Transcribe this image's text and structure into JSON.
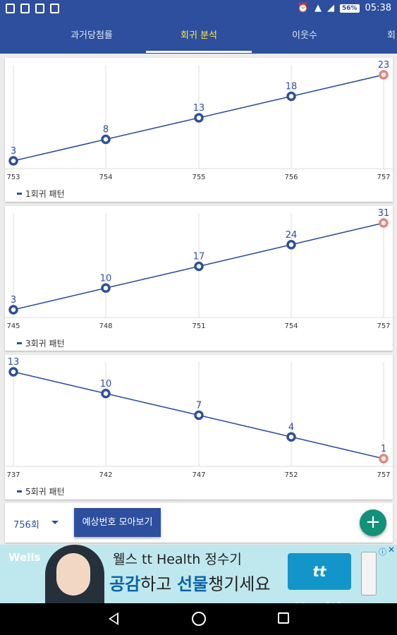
{
  "status_bar": {
    "battery": "56%",
    "time": "05:38",
    "icons": [
      "image-icon",
      "mail-icon",
      "sim-icon",
      "file-icon",
      "alarm-icon",
      "wifi-icon",
      "signal-icon",
      "battery-icon"
    ]
  },
  "tabs": [
    {
      "label": "과거당첨률"
    },
    {
      "label": "회귀 분석"
    },
    {
      "label": "이웃수"
    },
    {
      "label": "회"
    }
  ],
  "active_tab": "회귀 분석",
  "chart_data": [
    {
      "type": "line",
      "x": [
        "753",
        "754",
        "755",
        "756",
        "757"
      ],
      "values": [
        3,
        8,
        13,
        18,
        23
      ],
      "data_labels": [
        "3",
        "8",
        "13",
        "18",
        "23"
      ],
      "legend": "1회귀 패턴"
    },
    {
      "type": "line",
      "x": [
        "745",
        "748",
        "751",
        "754",
        "757"
      ],
      "values": [
        3,
        10,
        17,
        24,
        31
      ],
      "data_labels": [
        "3",
        "10",
        "17",
        "24",
        "31"
      ],
      "legend": "3회귀 패턴"
    },
    {
      "type": "line",
      "x": [
        "737",
        "742",
        "747",
        "752",
        "757"
      ],
      "values": [
        13,
        10,
        7,
        4,
        1
      ],
      "data_labels": [
        "13",
        "10",
        "7",
        "4",
        "1"
      ],
      "legend": "5회귀 패턴"
    }
  ],
  "colors": {
    "line": "#2e4f9e",
    "predicted_point": "#e7837a",
    "grid": "#dcdcdc"
  },
  "bottom_bar": {
    "round_select": "756회",
    "predict_button": "예상번호 모아보기",
    "fab_label": "+"
  },
  "ad": {
    "brand": "Wells",
    "line1": "웰스 tt Health 정수기",
    "line2_part1": "공감",
    "line2_part2": "하고 ",
    "line2_part3": "선물",
    "line2_part4": "챙기세요",
    "logo_text": "tt Health",
    "info": "ⓘ",
    "close": "✕"
  }
}
